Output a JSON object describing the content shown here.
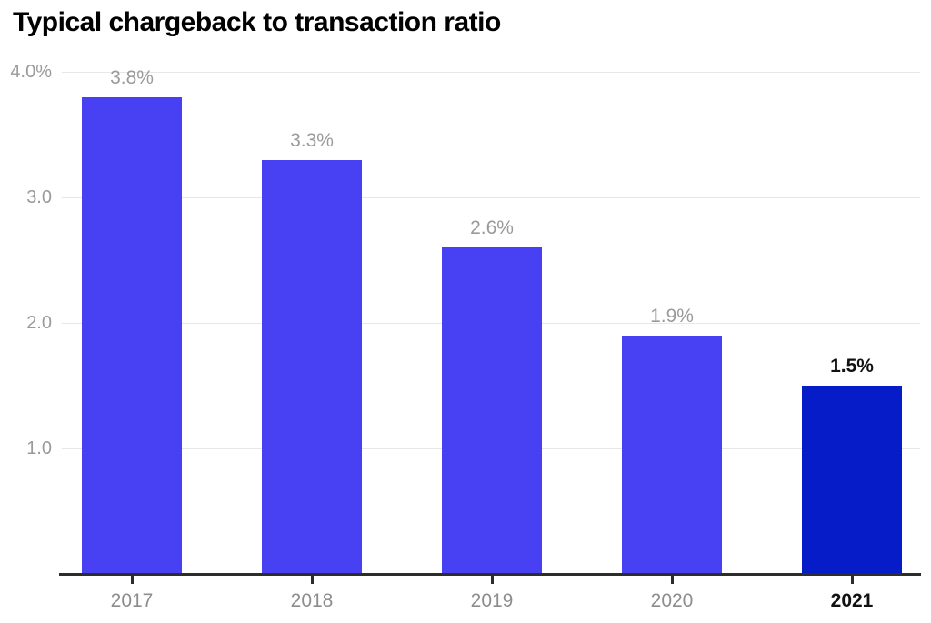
{
  "title": "Typical chargeback to transaction ratio",
  "colors": {
    "bar": "#4741f3",
    "bar_highlight": "#051cc8",
    "grid": "#e7e7e7",
    "axis": "#2d2d2d",
    "label_gray": "#9a9a9a",
    "label_dark": "#111111"
  },
  "chart_data": {
    "type": "bar",
    "title": "Typical chargeback to transaction ratio",
    "categories": [
      "2017",
      "2018",
      "2019",
      "2020",
      "2021"
    ],
    "values": [
      3.8,
      3.3,
      2.6,
      1.9,
      1.5
    ],
    "value_labels": [
      "3.8%",
      "3.3%",
      "2.6%",
      "1.9%",
      "1.5%"
    ],
    "highlight_index": 4,
    "xlabel": "",
    "ylabel": "",
    "ylim": [
      0,
      4.0
    ],
    "yticks": [
      {
        "value": 1.0,
        "label": "1.0"
      },
      {
        "value": 2.0,
        "label": "2.0"
      },
      {
        "value": 3.0,
        "label": "3.0"
      },
      {
        "value": 4.0,
        "label": "4.0%"
      }
    ],
    "grid": true,
    "legend": false
  }
}
